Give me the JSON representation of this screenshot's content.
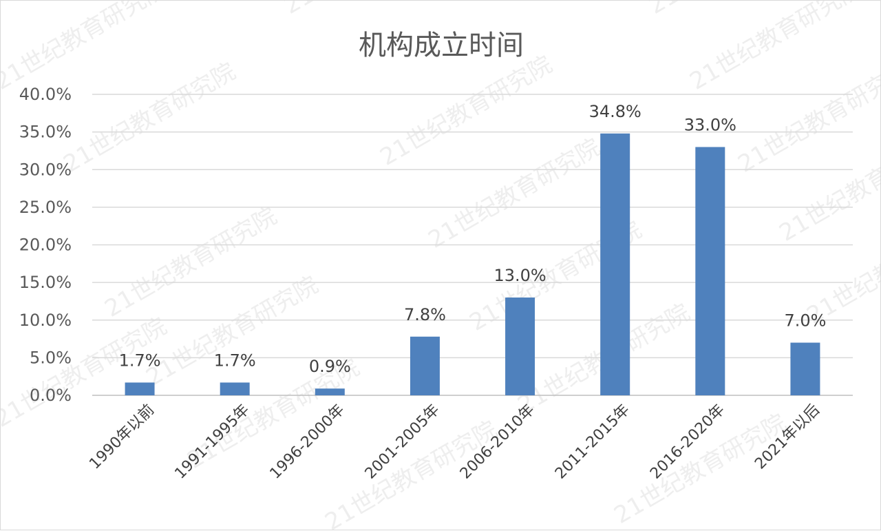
{
  "chart_data": {
    "type": "bar",
    "title": "机构成立时间",
    "categories": [
      "1990年以前",
      "1991-1995年",
      "1996-2000年",
      "2001-2005年",
      "2006-2010年",
      "2011-2015年",
      "2016-2020年",
      "2021年以后"
    ],
    "values": [
      1.7,
      1.7,
      0.9,
      7.8,
      13.0,
      34.8,
      33.0,
      7.0
    ],
    "data_labels": [
      "1.7%",
      "1.7%",
      "0.9%",
      "7.8%",
      "13.0%",
      "34.8%",
      "33.0%",
      "7.0%"
    ],
    "yticks": [
      "0.0%",
      "5.0%",
      "10.0%",
      "15.0%",
      "20.0%",
      "25.0%",
      "30.0%",
      "35.0%",
      "40.0%"
    ],
    "ylim": [
      0,
      40
    ],
    "xlabel": "",
    "ylabel": "",
    "grid": true,
    "legend": "none",
    "bar_color": "#4f81bd"
  },
  "watermark": "21世纪教育研究院"
}
